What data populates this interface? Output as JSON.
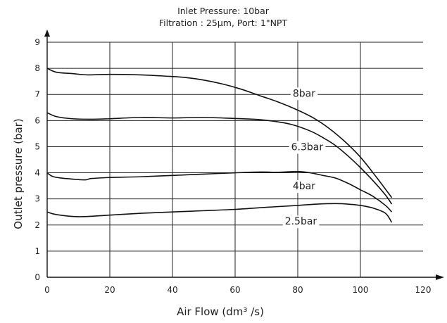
{
  "chart_data": {
    "type": "line",
    "title": "Inlet Pressure: 10bar",
    "subtitle": "Filtration : 25µm, Port: 1\"NPT",
    "xlabel": "Air Flow (dm³ /s)",
    "ylabel": "Outlet pressure (bar)",
    "xlim": [
      0,
      120
    ],
    "ylim": [
      0,
      9
    ],
    "x_ticks": [
      0,
      20,
      40,
      60,
      80,
      100,
      120
    ],
    "y_ticks": [
      0,
      1,
      2,
      3,
      4,
      5,
      6,
      7,
      8,
      9
    ],
    "grid": true,
    "series": [
      {
        "name": "8bar",
        "x": [
          0,
          3,
          8,
          13,
          20,
          30,
          38,
          44,
          50,
          56,
          62,
          68,
          74,
          80,
          85,
          90,
          95,
          100,
          105,
          110
        ],
        "y": [
          8.0,
          7.85,
          7.8,
          7.75,
          7.77,
          7.75,
          7.7,
          7.65,
          7.55,
          7.4,
          7.2,
          6.95,
          6.7,
          6.4,
          6.1,
          5.7,
          5.2,
          4.6,
          3.85,
          3.05
        ]
      },
      {
        "name": "6.3bar",
        "x": [
          0,
          3,
          8,
          14,
          20,
          30,
          40,
          50,
          60,
          66,
          72,
          78,
          84,
          88,
          92,
          96,
          100,
          104,
          108,
          110
        ],
        "y": [
          6.3,
          6.15,
          6.07,
          6.05,
          6.07,
          6.12,
          6.1,
          6.12,
          6.08,
          6.05,
          5.98,
          5.85,
          5.6,
          5.35,
          5.05,
          4.65,
          4.2,
          3.7,
          3.15,
          2.8
        ]
      },
      {
        "name": "4bar",
        "x": [
          0,
          2,
          6,
          12,
          14,
          20,
          30,
          40,
          50,
          60,
          68,
          74,
          80,
          84,
          88,
          92,
          96,
          100,
          104,
          108,
          110
        ],
        "y": [
          4.0,
          3.85,
          3.78,
          3.73,
          3.78,
          3.82,
          3.85,
          3.9,
          3.95,
          4.0,
          4.03,
          4.02,
          4.05,
          4.0,
          3.9,
          3.8,
          3.6,
          3.35,
          3.1,
          2.75,
          2.5
        ]
      },
      {
        "name": "2.5bar",
        "x": [
          0,
          3,
          10,
          20,
          30,
          40,
          50,
          60,
          70,
          80,
          86,
          92,
          96,
          100,
          104,
          108,
          110
        ],
        "y": [
          2.5,
          2.4,
          2.32,
          2.38,
          2.45,
          2.5,
          2.55,
          2.6,
          2.68,
          2.75,
          2.8,
          2.82,
          2.8,
          2.75,
          2.65,
          2.45,
          2.1
        ]
      }
    ],
    "annotations": [
      {
        "text": "8bar",
        "series": "8bar",
        "x": 82,
        "y": 7.05
      },
      {
        "text": "6.3bar",
        "series": "6.3bar",
        "x": 83,
        "y": 5.0
      },
      {
        "text": "4bar",
        "series": "4bar",
        "x": 82,
        "y": 3.5
      },
      {
        "text": "2.5bar",
        "series": "2.5bar",
        "x": 81,
        "y": 2.15
      }
    ]
  }
}
